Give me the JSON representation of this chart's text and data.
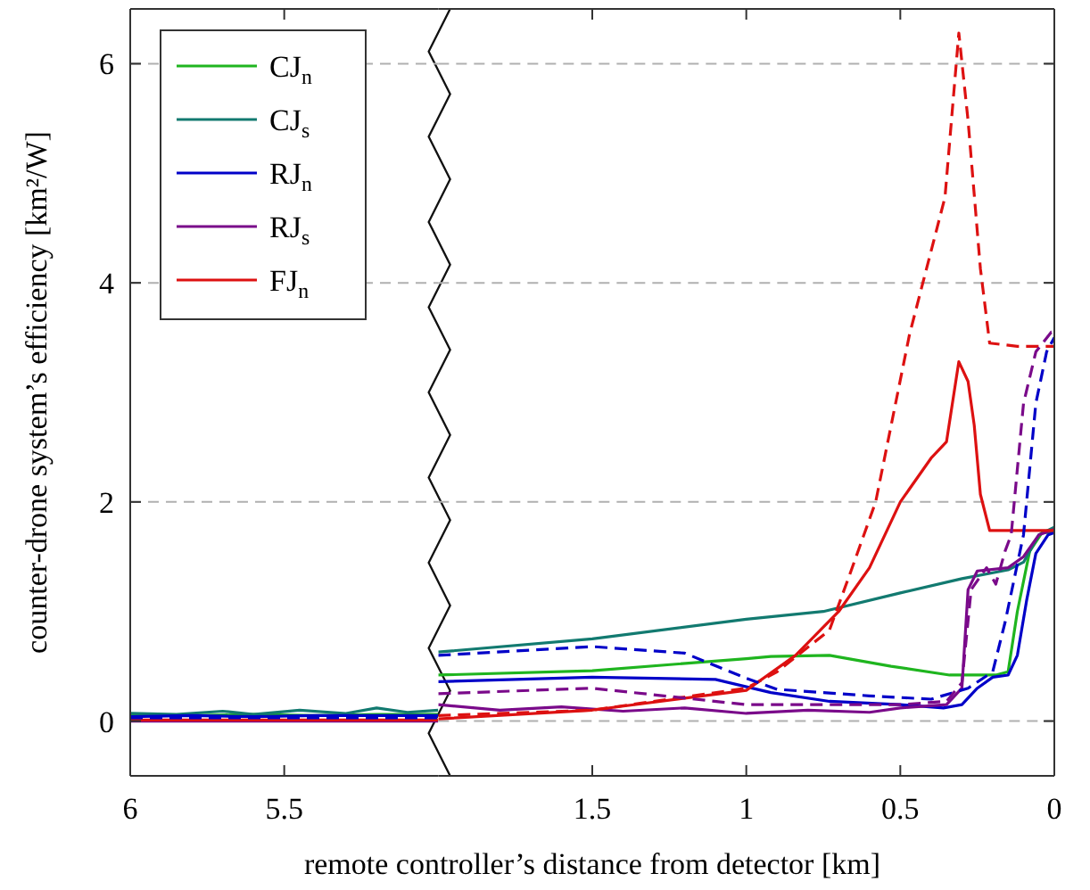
{
  "chart_data": [
    {
      "type": "line",
      "ylabel": "counter-drone system’s efficiency [km²/W]",
      "xlim": [
        6,
        5
      ],
      "xticks": [
        6,
        5.5
      ],
      "ylim": [
        -0.5,
        6.5
      ],
      "yticks": [
        0,
        2,
        4,
        6
      ],
      "grid": "y",
      "legend": "top left",
      "tick_labels": "xy",
      "series": [
        {
          "name": "CJ$_{n}$",
          "color": "#1fb51f",
          "x": [
            6,
            5.8,
            5.6,
            5.4,
            5.2,
            5
          ],
          "values": [
            0.05,
            0.05,
            0.06,
            0.05,
            0.06,
            0.06
          ]
        },
        {
          "name": "CJ$_{s}$",
          "color": "#127a70",
          "x": [
            6,
            5.85,
            5.7,
            5.6,
            5.45,
            5.3,
            5.2,
            5.1,
            5
          ],
          "values": [
            0.07,
            0.06,
            0.09,
            0.06,
            0.1,
            0.07,
            0.12,
            0.08,
            0.1
          ]
        },
        {
          "name": "RJ$_{n}$",
          "color": "#0000c8",
          "x": [
            6,
            5.8,
            5.6,
            5.4,
            5.2,
            5
          ],
          "values": [
            0.04,
            0.05,
            0.04,
            0.05,
            0.05,
            0.05
          ]
        },
        {
          "name": "RJ$_{s}$",
          "color": "#7a0a8a",
          "x": [
            6,
            5.5,
            5
          ],
          "values": [
            0.0,
            0.0,
            0.0
          ]
        },
        {
          "name": "FJ$_{n}$",
          "color": "#dd1111",
          "x": [
            6,
            5.5,
            5
          ],
          "values": [
            0.01,
            0.01,
            0.01
          ]
        },
        {
          "color": "#0000c8",
          "line_style": "dashed",
          "x": [
            6,
            5.5,
            5
          ],
          "values": [
            0.03,
            0.03,
            0.03
          ]
        }
      ]
    },
    {
      "type": "line",
      "xlabel": "remote controller’s distance from detector [km]",
      "xlim": [
        2,
        0
      ],
      "xticks": [
        1.5,
        1,
        0.5,
        0
      ],
      "ylim": [
        -0.5,
        6.5
      ],
      "yticks": [
        0,
        2,
        4,
        6
      ],
      "grid": "y",
      "tick_labels": "x",
      "series": [
        {
          "color": "#1fb51f",
          "x": [
            2,
            1.5,
            1,
            0.92,
            0.73,
            0.53,
            0.34,
            0.19,
            0.15,
            0.12,
            0.08,
            0.04,
            0
          ],
          "values": [
            0.42,
            0.46,
            0.57,
            0.59,
            0.6,
            0.5,
            0.42,
            0.42,
            0.45,
            1.0,
            1.55,
            1.72,
            1.72
          ]
        },
        {
          "color": "#127a70",
          "x": [
            2,
            1.5,
            1,
            0.75,
            0.5,
            0.3,
            0.15,
            0.1,
            0.05,
            0
          ],
          "values": [
            0.63,
            0.75,
            0.93,
            1.0,
            1.17,
            1.3,
            1.38,
            1.45,
            1.7,
            1.77
          ]
        },
        {
          "color": "#0000c8",
          "x": [
            2,
            1.5,
            1.1,
            0.92,
            0.73,
            0.5,
            0.36,
            0.3,
            0.25,
            0.2,
            0.15,
            0.12,
            0.09,
            0.06,
            0.02,
            0
          ],
          "values": [
            0.36,
            0.4,
            0.38,
            0.26,
            0.18,
            0.15,
            0.12,
            0.15,
            0.3,
            0.4,
            0.42,
            0.6,
            1.1,
            1.53,
            1.7,
            1.72
          ]
        },
        {
          "color": "#7a0a8a",
          "x": [
            2,
            1.8,
            1.6,
            1.4,
            1.2,
            1.0,
            0.8,
            0.6,
            0.5,
            0.35,
            0.3,
            0.28,
            0.25,
            0.15,
            0.1,
            0.05,
            0
          ],
          "values": [
            0.15,
            0.1,
            0.13,
            0.09,
            0.12,
            0.07,
            0.1,
            0.08,
            0.12,
            0.15,
            0.3,
            1.2,
            1.37,
            1.4,
            1.5,
            1.7,
            1.75
          ]
        },
        {
          "color": "#dd1111",
          "x": [
            2,
            1.5,
            1,
            0.84,
            0.7,
            0.6,
            0.5,
            0.4,
            0.35,
            0.31,
            0.28,
            0.26,
            0.24,
            0.21,
            0.15,
            0
          ],
          "values": [
            0.02,
            0.1,
            0.28,
            0.6,
            1.0,
            1.4,
            2.0,
            2.4,
            2.55,
            3.28,
            3.1,
            2.7,
            2.07,
            1.74,
            1.74,
            1.74
          ]
        },
        {
          "color": "#dd1111",
          "line_style": "dashed",
          "x": [
            2,
            1.5,
            1,
            0.9,
            0.73,
            0.66,
            0.58,
            0.47,
            0.355,
            0.31,
            0.28,
            0.24,
            0.21,
            0.12,
            0
          ],
          "values": [
            0.05,
            0.1,
            0.3,
            0.45,
            0.83,
            1.37,
            2.0,
            3.53,
            4.78,
            6.28,
            5.48,
            4.13,
            3.45,
            3.42,
            3.42
          ]
        },
        {
          "color": "#0000c8",
          "line_style": "dashed",
          "x": [
            2,
            1.5,
            1.2,
            1.0,
            0.9,
            0.6,
            0.4,
            0.28,
            0.2,
            0.16,
            0.13,
            0.1,
            0.06,
            0.025,
            0
          ],
          "values": [
            0.6,
            0.68,
            0.62,
            0.39,
            0.29,
            0.23,
            0.2,
            0.3,
            0.45,
            0.9,
            1.3,
            1.7,
            2.9,
            3.37,
            3.5
          ]
        },
        {
          "color": "#7a0a8a",
          "line_style": "dashed",
          "x": [
            2,
            1.5,
            1.0,
            0.5,
            0.35,
            0.3,
            0.27,
            0.22,
            0.19,
            0.16,
            0.14,
            0.1,
            0.06,
            0.01,
            0
          ],
          "values": [
            0.25,
            0.3,
            0.15,
            0.15,
            0.18,
            0.35,
            1.2,
            1.4,
            1.25,
            1.55,
            1.7,
            2.9,
            3.37,
            3.55,
            3.55
          ]
        }
      ]
    }
  ]
}
